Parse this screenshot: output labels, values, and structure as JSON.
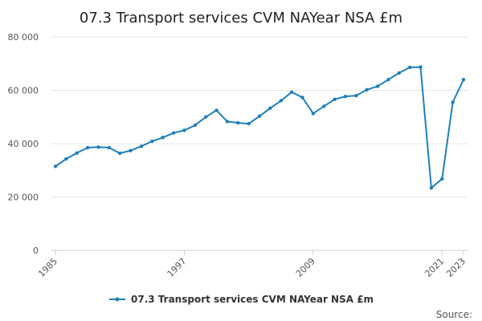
{
  "chart_data": {
    "type": "line",
    "title": "07.3 Transport services CVM NAYear NSA £m",
    "xlabel": "",
    "ylabel": "",
    "ylim": [
      0,
      80000
    ],
    "yticks": [
      0,
      20000,
      40000,
      60000,
      80000
    ],
    "ytick_labels": [
      "0",
      "20 000",
      "40 000",
      "60 000",
      "80 000"
    ],
    "xlim": [
      1985,
      2023
    ],
    "xticks": [
      1985,
      1997,
      2009,
      2021,
      2023
    ],
    "xtick_labels": [
      "1985",
      "1997",
      "2009",
      "2021",
      "2023"
    ],
    "grid": true,
    "legend_position": "bottom",
    "series": [
      {
        "name": "07.3 Transport services CVM NAYear NSA £m",
        "color": "#1f7fb8",
        "x": [
          1985,
          1986,
          1987,
          1988,
          1989,
          1990,
          1991,
          1992,
          1993,
          1994,
          1995,
          1996,
          1997,
          1998,
          1999,
          2000,
          2001,
          2002,
          2003,
          2004,
          2005,
          2006,
          2007,
          2008,
          2009,
          2010,
          2011,
          2012,
          2013,
          2014,
          2015,
          2016,
          2017,
          2018,
          2019,
          2020,
          2021,
          2022,
          2023
        ],
        "values": [
          31500,
          34300,
          36500,
          38500,
          38700,
          38500,
          36400,
          37400,
          39000,
          40900,
          42300,
          44000,
          45000,
          46900,
          50000,
          52500,
          48300,
          47800,
          47500,
          50300,
          53300,
          56100,
          59300,
          57300,
          51300,
          54000,
          56600,
          57700,
          58000,
          60200,
          61500,
          64000,
          66500,
          68600,
          68700,
          23400,
          26800,
          55500,
          64000
        ]
      }
    ]
  },
  "source": {
    "label": "Source:"
  }
}
